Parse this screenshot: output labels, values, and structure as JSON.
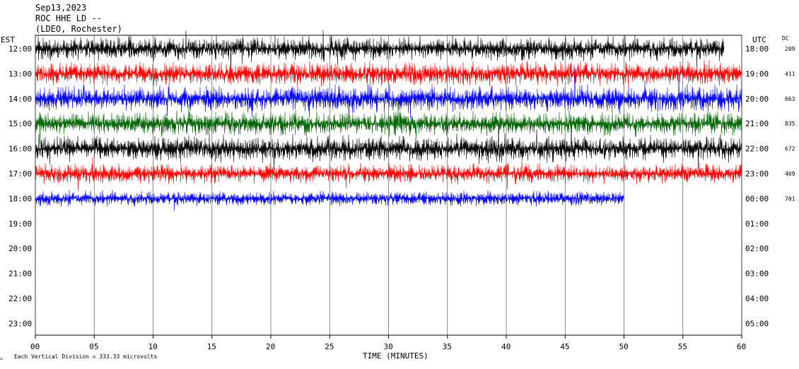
{
  "header": {
    "date": "Sep13,2023",
    "station": "ROC HHE LD --",
    "network": "(LDEO, Rochester)",
    "left_tz": "EST",
    "right_tz": "UTC",
    "dc_label": "DC"
  },
  "footer": {
    "scale_note": "Each Vertical Division =  333.33 microvolts",
    "xlabel": "TIME (MINUTES)"
  },
  "colors": {
    "black": "#000000",
    "red": "#ff0000",
    "blue": "#0000ff",
    "green": "#006400"
  },
  "chart_data": {
    "type": "line",
    "title": "Sep13,2023",
    "xlabel": "TIME (MINUTES)",
    "xlim": [
      0,
      60
    ],
    "x_ticks": [
      "00",
      "05",
      "10",
      "15",
      "20",
      "25",
      "30",
      "35",
      "40",
      "45",
      "50",
      "55",
      "60"
    ],
    "rows": [
      {
        "est": "12:00",
        "utc": "18:00",
        "dc": "209",
        "color": "black",
        "end_minute": 58.5,
        "amplitude": 0.55
      },
      {
        "est": "13:00",
        "utc": "19:00",
        "dc": "411",
        "color": "red",
        "end_minute": 60,
        "amplitude": 0.55
      },
      {
        "est": "14:00",
        "utc": "20:00",
        "dc": "663",
        "color": "blue",
        "end_minute": 60,
        "amplitude": 0.6
      },
      {
        "est": "15:00",
        "utc": "21:00",
        "dc": "835",
        "color": "green",
        "end_minute": 60,
        "amplitude": 0.55
      },
      {
        "est": "16:00",
        "utc": "22:00",
        "dc": "672",
        "color": "black",
        "end_minute": 60,
        "amplitude": 0.6
      },
      {
        "est": "17:00",
        "utc": "23:00",
        "dc": "469",
        "color": "red",
        "end_minute": 60,
        "amplitude": 0.45
      },
      {
        "est": "18:00",
        "utc": "00:00",
        "dc": "701",
        "color": "blue",
        "end_minute": 50,
        "amplitude": 0.35
      },
      {
        "est": "19:00",
        "utc": "01:00",
        "dc": "",
        "color": "black",
        "end_minute": 0,
        "amplitude": 0
      },
      {
        "est": "20:00",
        "utc": "02:00",
        "dc": "",
        "color": "red",
        "end_minute": 0,
        "amplitude": 0
      },
      {
        "est": "21:00",
        "utc": "03:00",
        "dc": "",
        "color": "blue",
        "end_minute": 0,
        "amplitude": 0
      },
      {
        "est": "22:00",
        "utc": "04:00",
        "dc": "",
        "color": "green",
        "end_minute": 0,
        "amplitude": 0
      },
      {
        "est": "23:00",
        "utc": "05:00",
        "dc": "",
        "color": "black",
        "end_minute": 0,
        "amplitude": 0
      }
    ]
  }
}
